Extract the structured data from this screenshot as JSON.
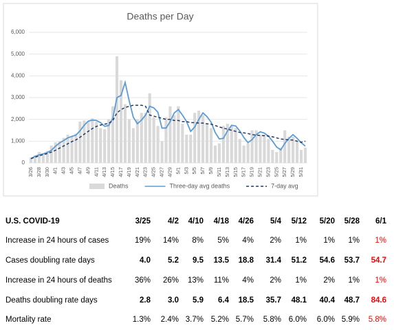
{
  "chart_data": {
    "type": "bar",
    "title": "Deaths per Day",
    "categories": [
      "3/26",
      null,
      "3/28",
      null,
      "3/30",
      null,
      "4/1",
      null,
      "4/3",
      null,
      "4/5",
      null,
      "4/7",
      null,
      "4/9",
      null,
      "4/11",
      null,
      "4/13",
      null,
      "4/15",
      null,
      "4/17",
      null,
      "4/19",
      null,
      "4/21",
      null,
      "4/23",
      null,
      "4/25",
      null,
      "4/27",
      null,
      "4/29",
      null,
      "5/1",
      null,
      "5/3",
      null,
      "5/5",
      null,
      "5/7",
      null,
      "5/9",
      null,
      "5/11",
      null,
      "5/13",
      null,
      "5/15",
      null,
      "5/17",
      null,
      "5/19",
      null,
      "5/21",
      null,
      "5/23",
      null,
      "5/25",
      null,
      "5/27",
      null,
      "5/29",
      null,
      "5/31",
      null
    ],
    "series": [
      {
        "name": "Deaths",
        "type": "bar",
        "color": "#d9d9d9",
        "values": [
          250,
          350,
          500,
          400,
          550,
          800,
          950,
          1000,
          1150,
          1300,
          1200,
          1350,
          1900,
          1950,
          1900,
          2050,
          1900,
          1600,
          1550,
          2000,
          2600,
          4900,
          3800,
          2700,
          2000,
          1600,
          2000,
          2300,
          2300,
          3200,
          2100,
          1700,
          1000,
          2100,
          2600,
          2200,
          2600,
          1800,
          1300,
          1300,
          2300,
          2400,
          2200,
          1800,
          1600,
          800,
          900,
          1700,
          1800,
          1700,
          1600,
          1100,
          800,
          900,
          1500,
          1500,
          1300,
          1300,
          1100,
          600,
          500,
          700,
          1500,
          1200,
          1200,
          1000,
          600,
          700
        ]
      },
      {
        "name": "Three-day avg deaths",
        "type": "line",
        "color": "#5b9bd5",
        "dashed": false,
        "values": [
          200,
          300,
          370,
          420,
          480,
          580,
          770,
          920,
          1030,
          1150,
          1220,
          1280,
          1480,
          1730,
          1920,
          1970,
          1950,
          1850,
          1680,
          1720,
          2050,
          3000,
          3100,
          3700,
          2850,
          2100,
          1800,
          1970,
          2200,
          2600,
          2530,
          2330,
          1600,
          1600,
          1900,
          2300,
          2450,
          2200,
          1900,
          1450,
          1650,
          2000,
          2300,
          2130,
          1870,
          1400,
          1100,
          1130,
          1470,
          1730,
          1700,
          1470,
          1170,
          930,
          1070,
          1300,
          1430,
          1370,
          1230,
          1000,
          730,
          600,
          900,
          1130,
          1300,
          1130,
          930,
          770
        ]
      },
      {
        "name": "7-day avg",
        "type": "line",
        "color": "#203864",
        "dashed": true,
        "values": [
          200,
          260,
          330,
          380,
          430,
          500,
          580,
          680,
          780,
          880,
          980,
          1060,
          1180,
          1320,
          1450,
          1580,
          1680,
          1740,
          1780,
          1820,
          1950,
          2300,
          2450,
          2550,
          2600,
          2650,
          2650,
          2650,
          2600,
          2200,
          2150,
          2100,
          2050,
          2000,
          2000,
          1950,
          1950,
          1900,
          1900,
          1850,
          1850,
          1830,
          1830,
          1800,
          1780,
          1720,
          1650,
          1600,
          1550,
          1500,
          1450,
          1400,
          1380,
          1350,
          1300,
          1280,
          1260,
          1250,
          1230,
          1200,
          1150,
          1100,
          1080,
          1060,
          1050,
          1000,
          950,
          1000
        ]
      }
    ],
    "ylim": [
      0,
      6000
    ],
    "yticks": [
      0,
      {
        "value": 1000,
        "label": "1,000"
      },
      {
        "value": 2000,
        "label": "2,000"
      },
      {
        "value": 3000,
        "label": "3,000"
      },
      {
        "value": 4000,
        "label": "4,000"
      },
      {
        "value": 5000,
        "label": "5,000"
      },
      {
        "value": 6000,
        "label": "6,000"
      }
    ],
    "grid": true,
    "legend": "bottom"
  },
  "table": {
    "header": [
      "U.S. COVID-19",
      "3/25",
      "4/2",
      "4/10",
      "4/18",
      "4/26",
      "5/4",
      "5/12",
      "5/20",
      "5/28",
      "6/1"
    ],
    "rows": [
      [
        "Increase in 24 hours of cases",
        "19%",
        "14%",
        "8%",
        "5%",
        "4%",
        "2%",
        "1%",
        "1%",
        "1%",
        "1%"
      ],
      [
        "Cases doubling rate days",
        "4.0",
        "5.2",
        "9.5",
        "13.5",
        "18.8",
        "31.4",
        "51.2",
        "54.6",
        "53.7",
        "54.7"
      ],
      [
        "Increase in 24 hours of deaths",
        "36%",
        "26%",
        "13%",
        "11%",
        "4%",
        "2%",
        "1%",
        "2%",
        "1%",
        "1%"
      ],
      [
        "Deaths doubling rate days",
        "2.8",
        "3.0",
        "5.9",
        "6.4",
        "18.5",
        "35.7",
        "48.1",
        "40.4",
        "48.7",
        "84.6"
      ],
      [
        "Mortality rate",
        "1.3%",
        "2.4%",
        "3.7%",
        "5.2%",
        "5.7%",
        "5.8%",
        "6.0%",
        "6.0%",
        "5.9%",
        "5.8%"
      ]
    ],
    "highlight_color": "#ff0000"
  }
}
